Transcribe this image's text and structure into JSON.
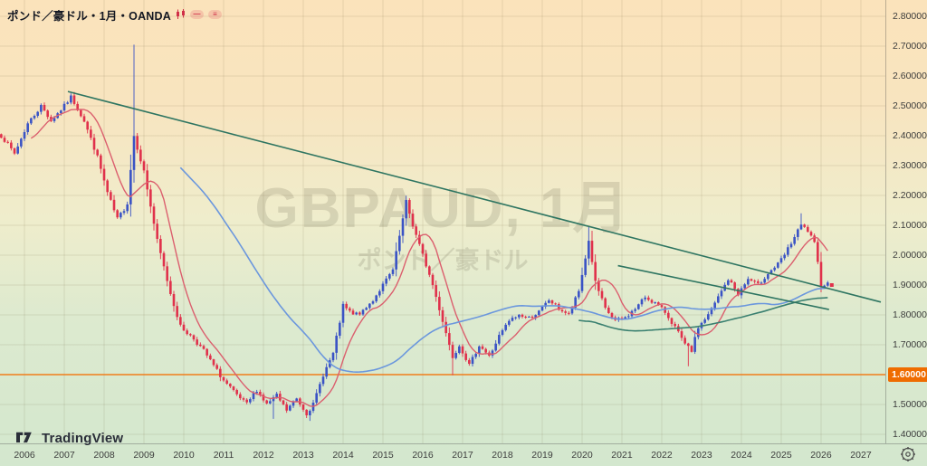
{
  "header": {
    "symbol_title": "ポンド／豪ドル・1月・OANDA",
    "icons": [
      "candle-chart-icon",
      "hide-indicator-icon",
      "more-options-icon"
    ]
  },
  "watermark": {
    "line1": "GBPAUD, 1月",
    "line2": "ポンド／豪ドル"
  },
  "logo": {
    "text": "TradingView"
  },
  "price_axis": {
    "labels": [
      {
        "label": "2.80000",
        "price": 2.8
      },
      {
        "label": "2.70000",
        "price": 2.7
      },
      {
        "label": "2.60000",
        "price": 2.6
      },
      {
        "label": "2.50000",
        "price": 2.5
      },
      {
        "label": "2.40000",
        "price": 2.4
      },
      {
        "label": "2.30000",
        "price": 2.3
      },
      {
        "label": "2.20000",
        "price": 2.2
      },
      {
        "label": "2.10000",
        "price": 2.1
      },
      {
        "label": "2.00000",
        "price": 2.0
      },
      {
        "label": "1.90000",
        "price": 1.9
      },
      {
        "label": "1.80000",
        "price": 1.8
      },
      {
        "label": "1.70000",
        "price": 1.7
      },
      {
        "label": "1.50000",
        "price": 1.5
      },
      {
        "label": "1.40000",
        "price": 1.4
      }
    ],
    "highlight": {
      "label": "1.60000",
      "price": 1.6,
      "bg": "#ef6c00"
    }
  },
  "time_axis": {
    "years": [
      2006,
      2007,
      2008,
      2009,
      2010,
      2011,
      2012,
      2013,
      2014,
      2015,
      2016,
      2017,
      2018,
      2019,
      2020,
      2021,
      2022,
      2023,
      2024,
      2025,
      2026,
      2027
    ]
  },
  "chart_data": {
    "type": "candlestick",
    "title": "GBPAUD monthly (1月) - OANDA",
    "interval": "1M",
    "x_domain": [
      2005.386,
      2027.614
    ],
    "y_domain": [
      1.3697,
      2.8545
    ],
    "price_grid_step": 0.1,
    "price_grid": [
      1.4,
      1.5,
      1.6,
      1.7,
      1.8,
      1.9,
      2.0,
      2.1,
      2.2,
      2.3,
      2.4,
      2.5,
      2.6,
      2.7,
      2.8
    ],
    "candle_colors": {
      "up": "#3a53c5",
      "down": "#e0314b"
    },
    "grid_color": "rgba(90,80,40,0.13)",
    "months_start": 2005.4167,
    "months_end": 2026.1667,
    "monthly_close_anchors": [
      [
        2005.42,
        2.4
      ],
      [
        2005.75,
        2.34
      ],
      [
        2006.08,
        2.44
      ],
      [
        2006.42,
        2.5
      ],
      [
        2006.67,
        2.45
      ],
      [
        2007.0,
        2.5
      ],
      [
        2007.17,
        2.53
      ],
      [
        2007.5,
        2.45
      ],
      [
        2007.83,
        2.33
      ],
      [
        2008.08,
        2.21
      ],
      [
        2008.33,
        2.12
      ],
      [
        2008.58,
        2.17
      ],
      [
        2008.75,
        2.4
      ],
      [
        2009.0,
        2.28
      ],
      [
        2009.33,
        2.05
      ],
      [
        2009.67,
        1.87
      ],
      [
        2009.92,
        1.76
      ],
      [
        2010.25,
        1.72
      ],
      [
        2010.5,
        1.68
      ],
      [
        2010.75,
        1.63
      ],
      [
        2011.0,
        1.58
      ],
      [
        2011.33,
        1.53
      ],
      [
        2011.58,
        1.5
      ],
      [
        2011.83,
        1.55
      ],
      [
        2012.08,
        1.5
      ],
      [
        2012.33,
        1.53
      ],
      [
        2012.58,
        1.48
      ],
      [
        2012.83,
        1.52
      ],
      [
        2013.08,
        1.47
      ],
      [
        2013.25,
        1.5
      ],
      [
        2013.5,
        1.6
      ],
      [
        2013.75,
        1.67
      ],
      [
        2014.0,
        1.83
      ],
      [
        2014.25,
        1.8
      ],
      [
        2014.5,
        1.81
      ],
      [
        2014.75,
        1.85
      ],
      [
        2015.0,
        1.9
      ],
      [
        2015.25,
        1.95
      ],
      [
        2015.5,
        2.12
      ],
      [
        2015.58,
        2.18
      ],
      [
        2015.75,
        2.1
      ],
      [
        2016.0,
        2.0
      ],
      [
        2016.25,
        1.9
      ],
      [
        2016.5,
        1.78
      ],
      [
        2016.75,
        1.66
      ],
      [
        2016.92,
        1.7
      ],
      [
        2017.17,
        1.63
      ],
      [
        2017.42,
        1.7
      ],
      [
        2017.67,
        1.66
      ],
      [
        2017.92,
        1.73
      ],
      [
        2018.17,
        1.78
      ],
      [
        2018.42,
        1.8
      ],
      [
        2018.67,
        1.79
      ],
      [
        2018.92,
        1.81
      ],
      [
        2019.17,
        1.85
      ],
      [
        2019.42,
        1.82
      ],
      [
        2019.67,
        1.8
      ],
      [
        2019.92,
        1.88
      ],
      [
        2020.17,
        2.05
      ],
      [
        2020.33,
        1.91
      ],
      [
        2020.58,
        1.82
      ],
      [
        2020.83,
        1.78
      ],
      [
        2021.08,
        1.79
      ],
      [
        2021.33,
        1.82
      ],
      [
        2021.58,
        1.86
      ],
      [
        2021.83,
        1.84
      ],
      [
        2022.08,
        1.81
      ],
      [
        2022.33,
        1.76
      ],
      [
        2022.58,
        1.7
      ],
      [
        2022.75,
        1.68
      ],
      [
        2022.92,
        1.76
      ],
      [
        2023.17,
        1.8
      ],
      [
        2023.42,
        1.86
      ],
      [
        2023.67,
        1.92
      ],
      [
        2023.92,
        1.87
      ],
      [
        2024.17,
        1.92
      ],
      [
        2024.42,
        1.9
      ],
      [
        2024.67,
        1.94
      ],
      [
        2024.92,
        1.97
      ],
      [
        2025.08,
        2.0
      ],
      [
        2025.33,
        2.06
      ],
      [
        2025.5,
        2.1
      ],
      [
        2025.67,
        2.08
      ],
      [
        2025.83,
        2.04
      ],
      [
        2025.92,
        1.97
      ],
      [
        2026.0,
        1.9
      ],
      [
        2026.17,
        1.905
      ]
    ],
    "wick_overrides": [
      {
        "t": 2008.75,
        "high": 2.705
      },
      {
        "t": 2013.17,
        "low": 1.445
      },
      {
        "t": 2012.25,
        "low": 1.452
      },
      {
        "t": 2016.75,
        "low": 1.598
      },
      {
        "t": 2020.17,
        "high": 2.095
      },
      {
        "t": 2022.67,
        "low": 1.628
      },
      {
        "t": 2025.5,
        "high": 2.14
      }
    ],
    "horizontal_line": {
      "price": 1.6,
      "color": "#ef7d1a",
      "width": 1.6
    },
    "trendlines": [
      {
        "name": "long-term-descending",
        "from": [
          2007.09,
          2.548
        ],
        "to": [
          2027.5,
          1.843
        ],
        "color": "#2e7561",
        "width": 1.6
      },
      {
        "name": "short-descending",
        "from": [
          2020.9,
          1.965
        ],
        "to": [
          2026.2,
          1.818
        ],
        "color": "#2e7561",
        "width": 1.6
      }
    ],
    "moving_averages": [
      {
        "name": "fast-ma",
        "period": 10,
        "color": "#db5f6e",
        "width": 1.4,
        "draw_from": -99999
      },
      {
        "name": "slow-ma",
        "period": 55,
        "color": "#6b97dd",
        "width": 1.6,
        "draw_from": -99999
      },
      {
        "name": "long-ma",
        "period": 140,
        "color": "#3a8070",
        "width": 1.6,
        "draw_from": 2019.9
      }
    ],
    "last_price_marker": {
      "price": 1.9,
      "color": "#e0314b"
    }
  }
}
